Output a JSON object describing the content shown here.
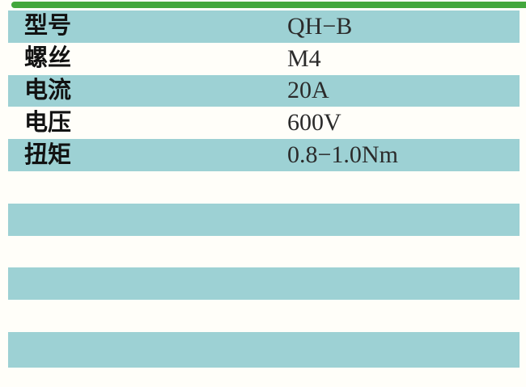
{
  "page": {
    "background_color": "#fffef9"
  },
  "accent": {
    "top_bar_color": "#43a73d",
    "row_highlight_color": "#9dd1d4"
  },
  "table": {
    "rows": [
      {
        "label": "型号",
        "value": "QH−B"
      },
      {
        "label": "螺丝",
        "value": "M4"
      },
      {
        "label": "电流",
        "value": "20A"
      },
      {
        "label": "电压",
        "value": "600V"
      },
      {
        "label": "扭矩",
        "value": "0.8−1.0Nm"
      },
      {
        "label": "",
        "value": ""
      },
      {
        "label": "",
        "value": ""
      },
      {
        "label": "",
        "value": ""
      },
      {
        "label": "",
        "value": ""
      },
      {
        "label": "",
        "value": ""
      },
      {
        "label": "",
        "value": ""
      }
    ]
  }
}
